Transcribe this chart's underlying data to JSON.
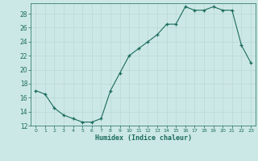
{
  "x": [
    0,
    1,
    2,
    3,
    4,
    5,
    6,
    7,
    8,
    9,
    10,
    11,
    12,
    13,
    14,
    15,
    16,
    17,
    18,
    19,
    20,
    21,
    22,
    23
  ],
  "y": [
    17.0,
    16.5,
    14.5,
    13.5,
    13.0,
    12.5,
    12.5,
    13.0,
    17.0,
    19.5,
    22.0,
    23.0,
    24.0,
    25.0,
    26.5,
    26.5,
    29.0,
    28.5,
    28.5,
    29.0,
    28.5,
    28.5,
    23.5,
    21.0
  ],
  "xlabel": "Humidex (Indice chaleur)",
  "line_color": "#1a6b5a",
  "marker_color": "#1a6b5a",
  "bg_color": "#cce8e6",
  "grid_color": "#b8d8d5",
  "tick_color": "#1a6b5a",
  "label_color": "#1a6b5a",
  "ylim": [
    12,
    29.5
  ],
  "xlim": [
    -0.5,
    23.5
  ],
  "yticks": [
    12,
    14,
    16,
    18,
    20,
    22,
    24,
    26,
    28
  ],
  "xticks": [
    0,
    1,
    2,
    3,
    4,
    5,
    6,
    7,
    8,
    9,
    10,
    11,
    12,
    13,
    14,
    15,
    16,
    17,
    18,
    19,
    20,
    21,
    22,
    23
  ]
}
